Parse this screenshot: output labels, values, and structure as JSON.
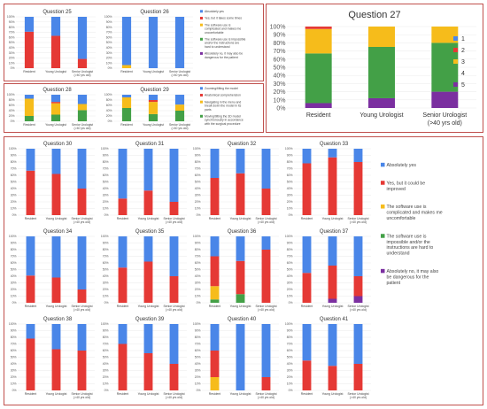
{
  "colors": {
    "absolutely_yes": "#4a86e8",
    "yes_improved": "#e53935",
    "complicated": "#f6bc1b",
    "impossible": "#43a047",
    "dangerous": "#7b2fa0",
    "zooming": "#4a86e8",
    "anatomical": "#e53935",
    "navigating": "#f6bc1b",
    "moving": "#43a047",
    "panel_border": "#c0504d"
  },
  "groups": [
    "Resident",
    "Young Urologist",
    "Senior Urologist (>40 yrs old)"
  ],
  "legend_usability": [
    "Absolutely yes",
    "Yes, but it takes some times",
    "The software use is complicated and makes me uncomfortable",
    "The software use is impossible and/or the instructions are hard to understand",
    "Absolutely no, it may also be dangerous for the patient"
  ],
  "legend_features": [
    "Zooming/tilting the model",
    "Anatomical comprehension",
    "Navigating in the menu and break down the model in its parts",
    "Moving/tilting the 3D model synchronously in accordance with the surgical procedure"
  ],
  "legend_main": [
    "Absolutely yes",
    "Yes, but it could be improved",
    "The software use is complicated and makes me uncomfortable",
    "The software use is impossible and/or the instructions are hard to understand",
    "Absolutely no, it may also be dangerous for the patient"
  ],
  "legend_q27": [
    "1",
    "2",
    "3",
    "4",
    "5"
  ],
  "chart_data": [
    {
      "type": "bar",
      "stacked": true,
      "title": "Question 25",
      "categories": [
        "Resident",
        "Young Urologist",
        "Senior Urologist (>40 yrs old)"
      ],
      "ylim": [
        0,
        100
      ],
      "series": [
        {
          "name": "Absolutely yes",
          "values": [
            29,
            37,
            82
          ]
        },
        {
          "name": "Yes, but it takes some times",
          "values": [
            71,
            63,
            18
          ]
        }
      ]
    },
    {
      "type": "bar",
      "stacked": true,
      "title": "Question 26",
      "categories": [
        "Resident",
        "Young Urologist",
        "Senior Urologist (>40 yrs old)"
      ],
      "ylim": [
        0,
        100
      ],
      "series": [
        {
          "name": "Absolutely yes",
          "values": [
            94,
            100,
            100
          ]
        },
        {
          "name": "The software use is complicated and makes me uncomfortable",
          "values": [
            6,
            0,
            0
          ]
        }
      ]
    },
    {
      "type": "bar",
      "stacked": true,
      "title": "Question 27",
      "categories": [
        "Resident",
        "Young Urologist",
        "Senior Urologist (>40 yrs old)"
      ],
      "ylim": [
        0,
        100
      ],
      "series": [
        {
          "name": "1",
          "values": [
            0,
            0,
            0
          ]
        },
        {
          "name": "2",
          "values": [
            3,
            0,
            0
          ]
        },
        {
          "name": "3",
          "values": [
            30,
            25,
            20
          ]
        },
        {
          "name": "4",
          "values": [
            61,
            63,
            60
          ]
        },
        {
          "name": "5",
          "values": [
            6,
            12,
            20
          ]
        }
      ]
    },
    {
      "type": "bar",
      "stacked": true,
      "title": "Question 28",
      "categories": [
        "Resident",
        "Young Urologist",
        "Senior Urologist (>40 yrs old)"
      ],
      "ylim": [
        0,
        100
      ],
      "series": [
        {
          "name": "Zooming/tilting the model",
          "values": [
            15,
            27,
            35
          ]
        },
        {
          "name": "Anatomical comprehension",
          "values": [
            0,
            5,
            0
          ]
        },
        {
          "name": "Navigating in the menu and break down the model in its parts",
          "values": [
            65,
            43,
            23
          ]
        },
        {
          "name": "Moving/tilting the 3D model synchronously in accordance with the surgical procedure",
          "values": [
            20,
            25,
            42
          ]
        }
      ]
    },
    {
      "type": "bar",
      "stacked": true,
      "title": "Question 29",
      "categories": [
        "Resident",
        "Young Urologist",
        "Senior Urologist (>40 yrs old)"
      ],
      "ylim": [
        0,
        100
      ],
      "series": [
        {
          "name": "Zooming/tilting the model",
          "values": [
            10,
            20,
            37
          ]
        },
        {
          "name": "Anatomical comprehension",
          "values": [
            0,
            7,
            0
          ]
        },
        {
          "name": "Navigating in the menu and break down the model in its parts",
          "values": [
            40,
            46,
            23
          ]
        },
        {
          "name": "Moving/tilting the 3D model synchronously in accordance with the surgical procedure",
          "values": [
            50,
            27,
            40
          ]
        }
      ]
    },
    {
      "type": "bar",
      "stacked": true,
      "title": "Question 30",
      "categories": [
        "Resident",
        "Young Urologist",
        "Senior Urologist (>40 yrs old)"
      ],
      "ylim": [
        0,
        100
      ],
      "series": [
        {
          "name": "Absolutely yes",
          "values": [
            33,
            38,
            60
          ]
        },
        {
          "name": "Yes, but it could be improved",
          "values": [
            67,
            62,
            40
          ]
        }
      ]
    },
    {
      "type": "bar",
      "stacked": true,
      "title": "Question 31",
      "categories": [
        "Resident",
        "Young Urologist",
        "Senior Urologist (>40 yrs old)"
      ],
      "ylim": [
        0,
        100
      ],
      "series": [
        {
          "name": "Absolutely yes",
          "values": [
            75,
            63,
            80
          ]
        },
        {
          "name": "Yes, but it could be improved",
          "values": [
            25,
            37,
            20
          ]
        }
      ]
    },
    {
      "type": "bar",
      "stacked": true,
      "title": "Question 32",
      "categories": [
        "Resident",
        "Young Urologist",
        "Senior Urologist (>40 yrs old)"
      ],
      "ylim": [
        0,
        100
      ],
      "series": [
        {
          "name": "Absolutely yes",
          "values": [
            44,
            37,
            60
          ]
        },
        {
          "name": "Yes, but it could be improved",
          "values": [
            56,
            63,
            40
          ]
        }
      ]
    },
    {
      "type": "bar",
      "stacked": true,
      "title": "Question 33",
      "categories": [
        "Resident",
        "Young Urologist",
        "Senior Urologist (>40 yrs old)"
      ],
      "ylim": [
        0,
        100
      ],
      "series": [
        {
          "name": "Absolutely yes",
          "values": [
            22,
            13,
            20
          ]
        },
        {
          "name": "Yes, but it could be improved",
          "values": [
            78,
            87,
            80
          ]
        }
      ]
    },
    {
      "type": "bar",
      "stacked": true,
      "title": "Question 34",
      "categories": [
        "Resident",
        "Young Urologist",
        "Senior Urologist (>40 yrs old)"
      ],
      "ylim": [
        0,
        100
      ],
      "series": [
        {
          "name": "Absolutely yes",
          "values": [
            59,
            62,
            80
          ]
        },
        {
          "name": "Yes, but it could be improved",
          "values": [
            41,
            38,
            20
          ]
        }
      ]
    },
    {
      "type": "bar",
      "stacked": true,
      "title": "Question 35",
      "categories": [
        "Resident",
        "Young Urologist",
        "Senior Urologist (>40 yrs old)"
      ],
      "ylim": [
        0,
        100
      ],
      "series": [
        {
          "name": "Absolutely yes",
          "values": [
            47,
            38,
            60
          ]
        },
        {
          "name": "Yes, but it could be improved",
          "values": [
            53,
            62,
            40
          ]
        }
      ]
    },
    {
      "type": "bar",
      "stacked": true,
      "title": "Question 36",
      "categories": [
        "Resident",
        "Young Urologist",
        "Senior Urologist (>40 yrs old)"
      ],
      "ylim": [
        0,
        100
      ],
      "series": [
        {
          "name": "Absolutely yes",
          "values": [
            30,
            37,
            20
          ]
        },
        {
          "name": "Yes, but it could be improved",
          "values": [
            45,
            50,
            80
          ]
        },
        {
          "name": "The software use is complicated and makes me uncomfortable",
          "values": [
            20,
            0,
            0
          ]
        },
        {
          "name": "The software use is impossible and/or the instructions are hard to understand",
          "values": [
            5,
            13,
            0
          ]
        }
      ]
    },
    {
      "type": "bar",
      "stacked": true,
      "title": "Question 37",
      "categories": [
        "Resident",
        "Young Urologist",
        "Senior Urologist (>40 yrs old)"
      ],
      "ylim": [
        0,
        100
      ],
      "series": [
        {
          "name": "Absolutely yes",
          "values": [
            55,
            44,
            60
          ]
        },
        {
          "name": "Yes, but it could be improved",
          "values": [
            45,
            50,
            30
          ]
        },
        {
          "name": "Absolutely no, it may also be dangerous for the patient",
          "values": [
            0,
            6,
            10
          ]
        }
      ]
    },
    {
      "type": "bar",
      "stacked": true,
      "title": "Question 38",
      "categories": [
        "Resident",
        "Young Urologist",
        "Senior Urologist (>40 yrs old)"
      ],
      "ylim": [
        0,
        100
      ],
      "series": [
        {
          "name": "Absolutely yes",
          "values": [
            22,
            38,
            40
          ]
        },
        {
          "name": "Yes, but it could be improved",
          "values": [
            78,
            62,
            60
          ]
        }
      ]
    },
    {
      "type": "bar",
      "stacked": true,
      "title": "Question 39",
      "categories": [
        "Resident",
        "Young Urologist",
        "Senior Urologist (>40 yrs old)"
      ],
      "ylim": [
        0,
        100
      ],
      "series": [
        {
          "name": "Absolutely yes",
          "values": [
            30,
            44,
            60
          ]
        },
        {
          "name": "Yes, but it could be improved",
          "values": [
            70,
            56,
            40
          ]
        }
      ]
    },
    {
      "type": "bar",
      "stacked": true,
      "title": "Question 40",
      "categories": [
        "Resident",
        "Young Urologist",
        "Senior Urologist (>40 yrs old)"
      ],
      "ylim": [
        0,
        100
      ],
      "series": [
        {
          "name": "Absolutely yes",
          "values": [
            40,
            100,
            80
          ]
        },
        {
          "name": "Yes, but it could be improved",
          "values": [
            40,
            0,
            20
          ]
        },
        {
          "name": "The software use is complicated and makes me uncomfortable",
          "values": [
            20,
            0,
            0
          ]
        }
      ]
    },
    {
      "type": "bar",
      "stacked": true,
      "title": "Question 41",
      "categories": [
        "Resident",
        "Young Urologist",
        "Senior Urologist (>40 yrs old)"
      ],
      "ylim": [
        0,
        100
      ],
      "series": [
        {
          "name": "Absolutely yes",
          "values": [
            55,
            63,
            60
          ]
        },
        {
          "name": "Yes, but it could be improved",
          "values": [
            45,
            37,
            40
          ]
        }
      ]
    }
  ]
}
